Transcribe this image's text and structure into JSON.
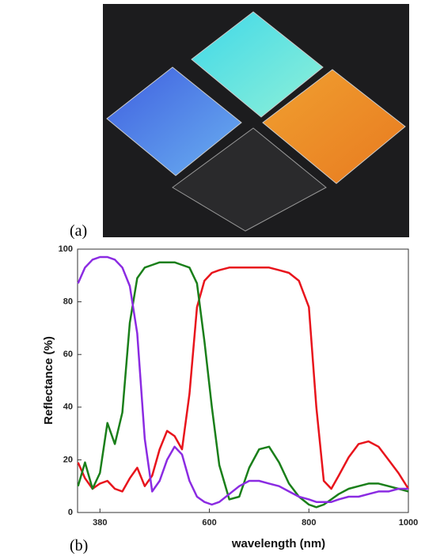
{
  "panel_labels": {
    "a": "(a)",
    "b": "(b)"
  },
  "chart_data": {
    "type": "line",
    "x_label": "wavelength (nm)",
    "y_label": "Reflectance (%)",
    "x": [
      336,
      350,
      365,
      380,
      395,
      410,
      425,
      440,
      455,
      470,
      485,
      500,
      515,
      530,
      545,
      560,
      575,
      590,
      605,
      620,
      640,
      660,
      680,
      700,
      720,
      740,
      760,
      780,
      800,
      815,
      830,
      845,
      860,
      880,
      900,
      920,
      940,
      960,
      980,
      1000
    ],
    "series": [
      {
        "color": "#e8141c",
        "values": [
          19,
          13,
          9,
          11,
          12,
          9,
          8,
          13,
          17,
          10,
          14,
          24,
          31,
          29,
          24,
          45,
          78,
          88,
          91,
          92,
          93,
          93,
          93,
          93,
          93,
          92,
          91,
          88,
          78,
          40,
          12,
          9,
          14,
          21,
          26,
          27,
          25,
          20,
          15,
          9
        ]
      },
      {
        "color": "#1a7f1a",
        "values": [
          10,
          19,
          9,
          15,
          34,
          26,
          38,
          72,
          89,
          93,
          94,
          95,
          95,
          95,
          94,
          93,
          87,
          65,
          40,
          18,
          5,
          6,
          17,
          24,
          25,
          19,
          11,
          6,
          3,
          2,
          3,
          5,
          7,
          9,
          10,
          11,
          11,
          10,
          9,
          8
        ]
      },
      {
        "color": "#8b2be2",
        "values": [
          87,
          93,
          96,
          97,
          97,
          96,
          93,
          86,
          68,
          28,
          8,
          12,
          20,
          25,
          22,
          12,
          6,
          4,
          3,
          4,
          7,
          10,
          12,
          12,
          11,
          10,
          8,
          6,
          5,
          4,
          4,
          4,
          5,
          6,
          6,
          7,
          8,
          8,
          9,
          9
        ]
      }
    ],
    "xlim": [
      335,
      1000
    ],
    "xticks": [
      380,
      600,
      800,
      1000
    ],
    "ylim": [
      0,
      100
    ],
    "yticks": [
      0,
      20,
      40,
      60,
      80,
      100
    ]
  }
}
